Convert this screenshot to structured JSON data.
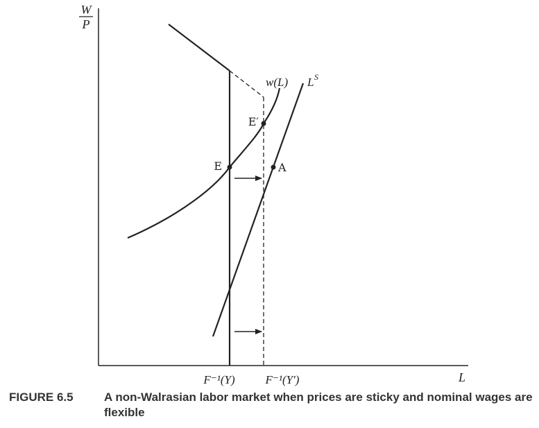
{
  "figure": {
    "y_axis_label_num": "W",
    "y_axis_label_den": "P",
    "x_axis_label": "L",
    "tick_left": "F⁻¹(Y)",
    "tick_right": "F⁻¹(Y′)",
    "curve_w_label": "w(L)",
    "curve_ls_label": "L",
    "curve_ls_sup": "S",
    "point_E": "E",
    "point_Eprime": "E′",
    "point_A": "A"
  },
  "caption": {
    "label": "FIGURE 6.5",
    "text": "A non-Walrasian labor market when prices are sticky and nominal wages are flexible"
  }
}
